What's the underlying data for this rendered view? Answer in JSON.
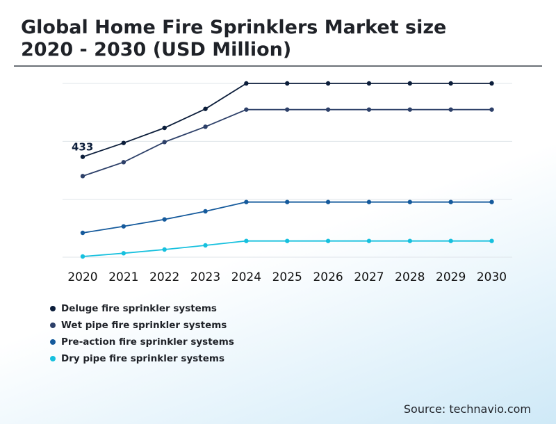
{
  "title_line1": "Global Home Fire Sprinklers Market size",
  "title_line2": "2020 - 2030 (USD Million)",
  "source": "Source: technavio.com",
  "chart_data": {
    "type": "line",
    "title": "Global Home Fire Sprinklers Market size 2020 - 2030 (USD Million)",
    "xlabel": "",
    "ylabel": "USD Million",
    "categories": [
      "2020",
      "2021",
      "2022",
      "2023",
      "2024",
      "2025",
      "2026",
      "2027",
      "2028",
      "2029",
      "2030"
    ],
    "ylim": [
      0,
      750
    ],
    "gridlines": [
      0,
      250,
      500,
      750
    ],
    "annotation": {
      "series_index": 0,
      "category_index": 0,
      "label": "433"
    },
    "series": [
      {
        "name": "Deluge fire sprinkler systems",
        "color": "#0b1d3a",
        "values": [
          433,
          493,
          558,
          640,
          750,
          750,
          750,
          750,
          750,
          750,
          750
        ]
      },
      {
        "name": "Wet pipe fire sprinkler systems",
        "color": "#2d4069",
        "values": [
          350,
          410,
          497,
          563,
          637,
          637,
          637,
          637,
          637,
          637,
          637
        ]
      },
      {
        "name": "Pre-action fire sprinkler systems",
        "color": "#155a9c",
        "values": [
          105,
          133,
          163,
          198,
          238,
          238,
          238,
          238,
          238,
          238,
          238
        ]
      },
      {
        "name": "Dry pipe fire sprinkler systems",
        "color": "#16c0de",
        "values": [
          3,
          17,
          33,
          51,
          70,
          70,
          70,
          70,
          70,
          70,
          70
        ]
      }
    ]
  }
}
